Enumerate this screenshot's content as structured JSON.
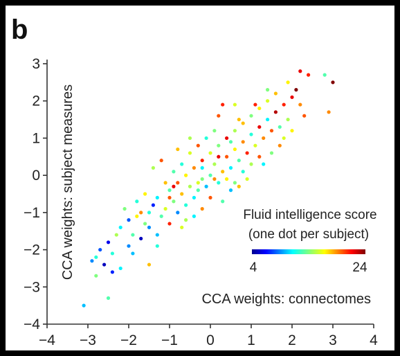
{
  "panel_label": "b",
  "chart_data": {
    "type": "scatter",
    "xlabel": "CCA weights: connectomes",
    "ylabel": "CCA weights: subject measures",
    "xlim": [
      -4,
      4
    ],
    "ylim": [
      -4,
      3
    ],
    "xticks": [
      "−4",
      "−3",
      "−2",
      "−1",
      "0",
      "1",
      "2",
      "3",
      "4"
    ],
    "yticks": [
      "−4",
      "−3",
      "−2",
      "−1",
      "0",
      "1",
      "2",
      "3"
    ],
    "grid": false,
    "colorbar": {
      "title_line1": "Fluid intelligence score",
      "title_line2": "(one dot per subject)",
      "min_label": "4",
      "max_label": "24",
      "min": 4,
      "max": 24,
      "colormap": "jet"
    },
    "points": [
      [
        -3.1,
        -3.5,
        10
      ],
      [
        -2.5,
        -3.3,
        13
      ],
      [
        -2.8,
        -2.7,
        14
      ],
      [
        -2.9,
        -2.3,
        9
      ],
      [
        -2.6,
        -2.4,
        5
      ],
      [
        -2.2,
        -2.5,
        11
      ],
      [
        -2.7,
        -2.0,
        8
      ],
      [
        -2.4,
        -2.1,
        12
      ],
      [
        -2.5,
        -1.8,
        6
      ],
      [
        -2.3,
        -1.6,
        15
      ],
      [
        -2.0,
        -1.9,
        9
      ],
      [
        -1.9,
        -1.6,
        13
      ],
      [
        -2.2,
        -1.4,
        11
      ],
      [
        -1.7,
        -1.7,
        5
      ],
      [
        -1.5,
        -2.4,
        18
      ],
      [
        -1.6,
        -1.3,
        14
      ],
      [
        -1.8,
        -1.1,
        17
      ],
      [
        -1.5,
        -1.0,
        12
      ],
      [
        -1.3,
        -1.6,
        10
      ],
      [
        -1.4,
        -0.8,
        7
      ],
      [
        -1.2,
        -1.1,
        13
      ],
      [
        -1.1,
        -0.9,
        16
      ],
      [
        -1.3,
        -0.6,
        11
      ],
      [
        -1.0,
        -1.3,
        21
      ],
      [
        -0.9,
        -0.7,
        14
      ],
      [
        -0.8,
        -1.0,
        9
      ],
      [
        -1.0,
        -0.4,
        13
      ],
      [
        -0.7,
        -0.5,
        18
      ],
      [
        -0.6,
        -0.8,
        12
      ],
      [
        -0.5,
        -0.3,
        15
      ],
      [
        -0.8,
        -0.2,
        20
      ],
      [
        -0.4,
        -0.6,
        11
      ],
      [
        -0.3,
        -0.4,
        13
      ],
      [
        -0.6,
        0.0,
        17
      ],
      [
        -0.2,
        -0.1,
        14
      ],
      [
        -0.4,
        0.2,
        19
      ],
      [
        -0.1,
        -0.3,
        10
      ],
      [
        0.0,
        0.0,
        13
      ],
      [
        -0.2,
        0.4,
        21
      ],
      [
        0.1,
        0.3,
        15
      ],
      [
        0.2,
        -0.2,
        12
      ],
      [
        0.3,
        0.1,
        18
      ],
      [
        0.0,
        0.6,
        16
      ],
      [
        0.4,
        0.5,
        20
      ],
      [
        0.2,
        0.8,
        14
      ],
      [
        0.5,
        0.2,
        11
      ],
      [
        0.6,
        0.7,
        17
      ],
      [
        0.4,
        1.0,
        22
      ],
      [
        0.7,
        0.4,
        13
      ],
      [
        0.8,
        0.9,
        19
      ],
      [
        0.6,
        1.2,
        15
      ],
      [
        0.9,
        0.6,
        21
      ],
      [
        1.0,
        1.1,
        12
      ],
      [
        0.8,
        1.4,
        18
      ],
      [
        1.1,
        0.8,
        16
      ],
      [
        1.2,
        1.3,
        22
      ],
      [
        1.0,
        1.6,
        14
      ],
      [
        1.3,
        1.0,
        19
      ],
      [
        1.4,
        1.5,
        11
      ],
      [
        1.2,
        1.8,
        17
      ],
      [
        1.5,
        1.2,
        20
      ],
      [
        1.6,
        1.7,
        23
      ],
      [
        1.4,
        2.0,
        16
      ],
      [
        1.7,
        1.3,
        13
      ],
      [
        1.8,
        1.9,
        21
      ],
      [
        1.6,
        2.2,
        18
      ],
      [
        1.9,
        1.5,
        15
      ],
      [
        2.0,
        2.1,
        22
      ],
      [
        2.2,
        1.9,
        19
      ],
      [
        2.1,
        2.3,
        24
      ],
      [
        2.3,
        1.6,
        20
      ],
      [
        1.9,
        2.5,
        17
      ],
      [
        2.4,
        2.7,
        21
      ],
      [
        2.8,
        2.7,
        13
      ],
      [
        3.0,
        2.5,
        24
      ],
      [
        2.9,
        1.7,
        19
      ],
      [
        2.2,
        2.8,
        22
      ],
      [
        -0.5,
        0.6,
        16
      ],
      [
        -0.9,
        0.1,
        13
      ],
      [
        -1.1,
        -0.2,
        18
      ],
      [
        -0.3,
        0.8,
        20
      ],
      [
        0.1,
        1.2,
        14
      ],
      [
        0.5,
        -0.4,
        10
      ],
      [
        -0.6,
        -1.2,
        15
      ],
      [
        -1.6,
        -0.5,
        17
      ],
      [
        -1.8,
        -0.7,
        12
      ],
      [
        -2.0,
        -1.2,
        8
      ],
      [
        0.3,
        -0.7,
        13
      ],
      [
        0.9,
        -0.1,
        16
      ],
      [
        1.3,
        0.3,
        11
      ],
      [
        -0.2,
        -0.9,
        19
      ],
      [
        0.6,
        -0.2,
        14
      ],
      [
        -1.3,
        -1.9,
        12
      ],
      [
        -0.7,
        -1.4,
        16
      ],
      [
        0.2,
        1.6,
        20
      ],
      [
        0.7,
        1.5,
        18
      ],
      [
        -0.1,
        1.0,
        12
      ],
      [
        1.1,
        1.9,
        21
      ],
      [
        -1.4,
        0.2,
        15
      ],
      [
        -0.8,
        0.7,
        18
      ],
      [
        0.0,
        -0.6,
        20
      ],
      [
        -0.4,
        -1.1,
        11
      ],
      [
        0.4,
        -0.1,
        17
      ],
      [
        1.5,
        0.6,
        14
      ],
      [
        1.7,
        0.8,
        19
      ],
      [
        -2.1,
        -0.9,
        14
      ],
      [
        -1.2,
        0.4,
        20
      ],
      [
        -0.5,
        1.0,
        15
      ],
      [
        0.8,
        0.1,
        12
      ],
      [
        1.8,
        1.0,
        16
      ],
      [
        0.3,
        1.9,
        21
      ],
      [
        -1.5,
        -1.4,
        9
      ],
      [
        -2.4,
        -2.6,
        7
      ],
      [
        -2.8,
        -2.2,
        12
      ],
      [
        -1.9,
        -2.1,
        10
      ],
      [
        -0.9,
        -0.3,
        22
      ],
      [
        -0.2,
        0.2,
        11
      ],
      [
        0.1,
        -0.1,
        19
      ],
      [
        0.5,
        0.9,
        13
      ],
      [
        1.2,
        0.5,
        20
      ],
      [
        1.0,
        0.3,
        15
      ],
      [
        0.7,
        -0.3,
        18
      ],
      [
        -0.3,
        -0.2,
        16
      ],
      [
        -0.7,
        0.3,
        12
      ],
      [
        0.2,
        0.5,
        22
      ],
      [
        -1.7,
        -1.0,
        19
      ],
      [
        -1.0,
        -0.6,
        20
      ],
      [
        0.6,
        1.9,
        16
      ],
      [
        1.4,
        2.3,
        14
      ],
      [
        2.0,
        1.2,
        17
      ]
    ]
  }
}
